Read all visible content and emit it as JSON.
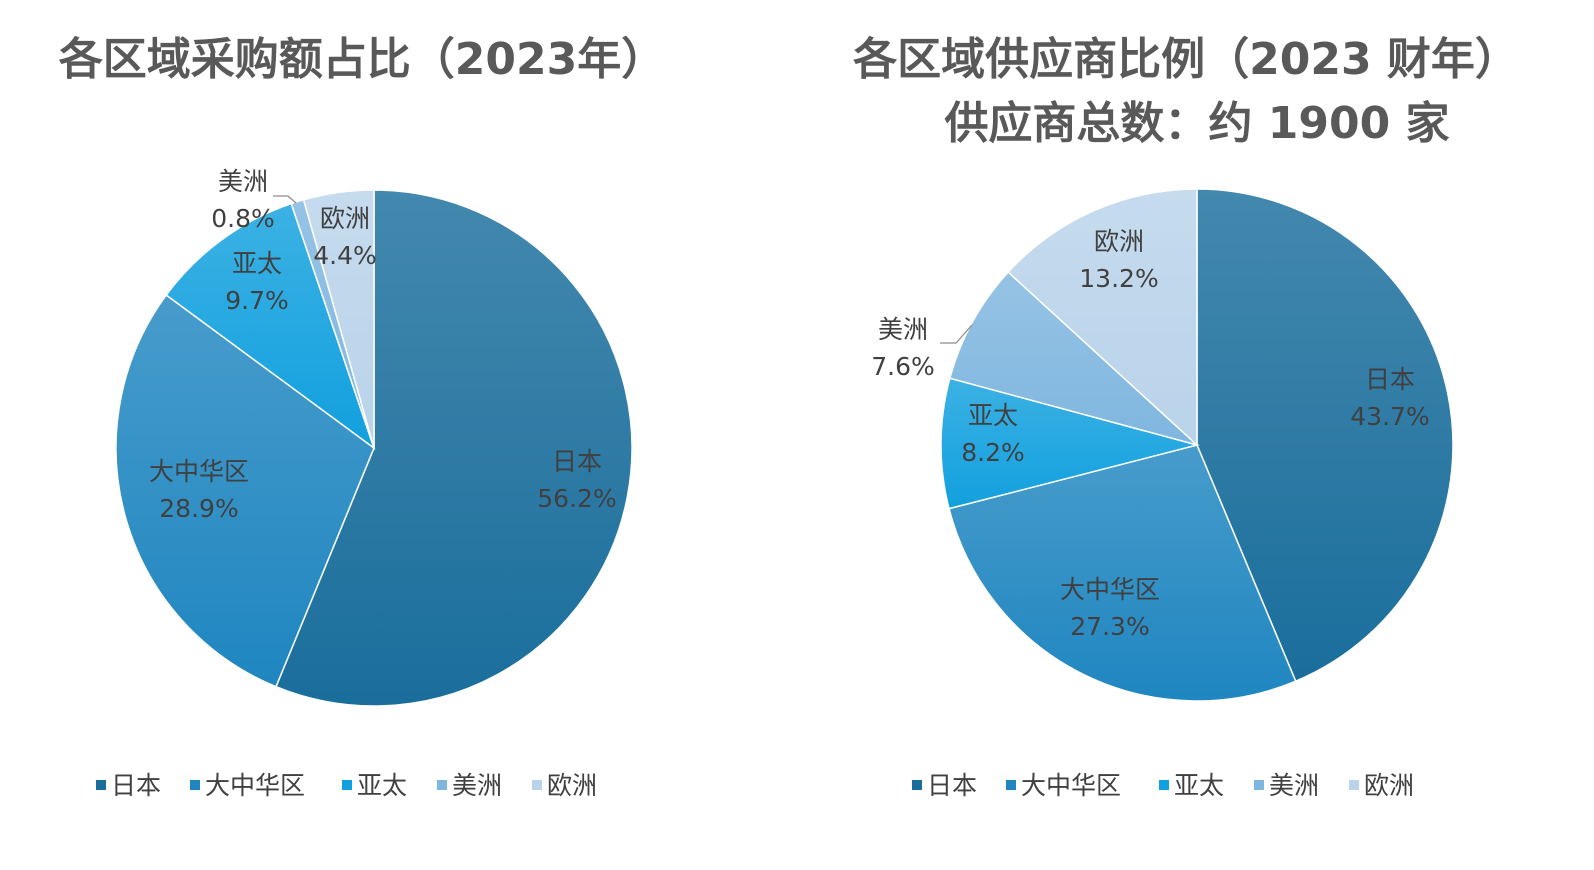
{
  "colors": [
    "#1a6e9c",
    "#1f86c0",
    "#11a0de",
    "#7fb6df",
    "#b9d3ea"
  ],
  "chart_data": [
    {
      "type": "pie",
      "title": "各区域采购额占比（2023年）",
      "subtitle": "",
      "categories": [
        "日本",
        "大中华区",
        "亚太",
        "美洲",
        "欧洲"
      ],
      "values": [
        56.2,
        28.9,
        9.7,
        0.8,
        4.4
      ],
      "value_labels": [
        "56.2%",
        "28.9%",
        "9.7%",
        "0.8%",
        "4.4%"
      ],
      "legend": "bottom"
    },
    {
      "type": "pie",
      "title": "各区域供应商比例（2023 财年）",
      "subtitle": "供应商总数：约 1900 家",
      "categories": [
        "日本",
        "大中华区",
        "亚太",
        "美洲",
        "欧洲"
      ],
      "values": [
        43.7,
        27.3,
        8.2,
        7.6,
        13.2
      ],
      "value_labels": [
        "43.7%",
        "27.3%",
        "8.2%",
        "7.6%",
        "13.2%"
      ],
      "legend": "bottom"
    }
  ]
}
